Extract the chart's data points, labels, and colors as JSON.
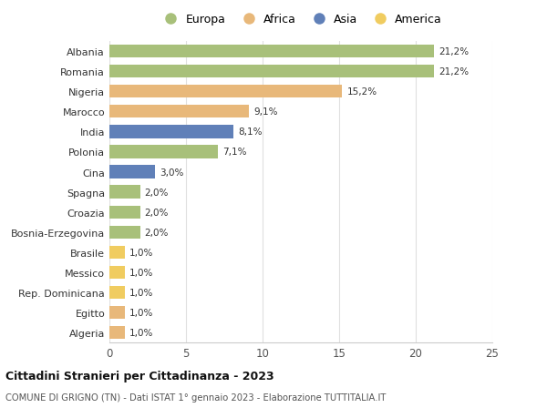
{
  "categories": [
    "Albania",
    "Romania",
    "Nigeria",
    "Marocco",
    "India",
    "Polonia",
    "Cina",
    "Spagna",
    "Croazia",
    "Bosnia-Erzegovina",
    "Brasile",
    "Messico",
    "Rep. Dominicana",
    "Egitto",
    "Algeria"
  ],
  "values": [
    21.2,
    21.2,
    15.2,
    9.1,
    8.1,
    7.1,
    3.0,
    2.0,
    2.0,
    2.0,
    1.0,
    1.0,
    1.0,
    1.0,
    1.0
  ],
  "labels": [
    "21,2%",
    "21,2%",
    "15,2%",
    "9,1%",
    "8,1%",
    "7,1%",
    "3,0%",
    "2,0%",
    "2,0%",
    "2,0%",
    "1,0%",
    "1,0%",
    "1,0%",
    "1,0%",
    "1,0%"
  ],
  "continents": [
    "Europa",
    "Europa",
    "Africa",
    "Africa",
    "Asia",
    "Europa",
    "Asia",
    "Europa",
    "Europa",
    "Europa",
    "America",
    "America",
    "America",
    "Africa",
    "Africa"
  ],
  "colors": {
    "Europa": "#a8c07a",
    "Africa": "#e8b87a",
    "Asia": "#6080b8",
    "America": "#f0cc60"
  },
  "legend_order": [
    "Europa",
    "Africa",
    "Asia",
    "America"
  ],
  "title": "Cittadini Stranieri per Cittadinanza - 2023",
  "subtitle": "COMUNE DI GRIGNO (TN) - Dati ISTAT 1° gennaio 2023 - Elaborazione TUTTITALIA.IT",
  "xlim": [
    0,
    25
  ],
  "xticks": [
    0,
    5,
    10,
    15,
    20,
    25
  ],
  "background_color": "#ffffff",
  "grid_color": "#e0e0e0"
}
